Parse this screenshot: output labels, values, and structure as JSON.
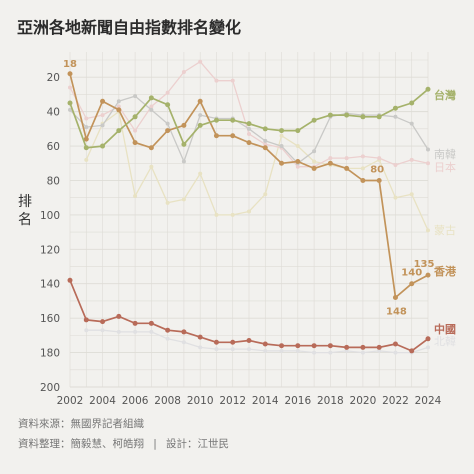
{
  "title": "亞洲各地新聞自由指數排名變化",
  "colors": {
    "background": "#f2f1ee",
    "taiwan": "#a5b26b",
    "hongkong": "#c2935a",
    "china": "#b86b59",
    "korea": "#c9c9c7",
    "japan": "#ecd0cf",
    "mongolia": "#e8e2c3",
    "northkorea": "#e0e0e2",
    "grid": "#dedcd6",
    "axis_text": "#555555"
  },
  "footer": {
    "source": "資料來源：無國界記者組織",
    "credits": "資料整理：簡毅慧、柯皓翔",
    "separator": "|",
    "design": "設計：江世民"
  },
  "chart_data": {
    "type": "line",
    "title": "亞洲各地新聞自由指數排名變化",
    "xlabel": "",
    "ylabel": "排名",
    "x": [
      2002,
      2003,
      2004,
      2005,
      2006,
      2007,
      2008,
      2009,
      2010,
      2011,
      2012,
      2013,
      2014,
      2015,
      2016,
      2017,
      2018,
      2019,
      2020,
      2021,
      2022,
      2023,
      2024
    ],
    "xlim": [
      2002,
      2024
    ],
    "ylim": [
      200,
      10
    ],
    "y_inverted": true,
    "xticks": [
      2002,
      2004,
      2006,
      2008,
      2010,
      2012,
      2014,
      2016,
      2018,
      2020,
      2022,
      2024
    ],
    "yticks": [
      20,
      40,
      60,
      80,
      100,
      120,
      140,
      160,
      180,
      200
    ],
    "grid": true,
    "legend": "end-of-line labels",
    "series": [
      {
        "name": "蒙古",
        "key": "mongolia",
        "values": [
          null,
          68,
          47,
          40,
          89,
          72,
          93,
          91,
          76,
          100,
          100,
          98,
          88,
          54,
          60,
          69,
          71,
          73,
          73,
          68,
          90,
          88,
          109
        ]
      },
      {
        "name": "北韓",
        "key": "northkorea",
        "values": [
          null,
          167,
          167,
          168,
          168,
          168,
          172,
          174,
          177,
          178,
          178,
          178,
          179,
          179,
          179,
          180,
          180,
          179,
          180,
          179,
          180,
          180,
          177
        ]
      },
      {
        "name": "日本",
        "key": "japan",
        "values": [
          26,
          44,
          42,
          37,
          51,
          37,
          29,
          17,
          11,
          22,
          22,
          53,
          59,
          61,
          72,
          72,
          67,
          67,
          66,
          67,
          71,
          68,
          70
        ]
      },
      {
        "name": "南韓",
        "key": "korea",
        "values": [
          39,
          49,
          48,
          34,
          31,
          39,
          47,
          69,
          42,
          44,
          44,
          50,
          57,
          60,
          70,
          63,
          43,
          41,
          42,
          42,
          43,
          47,
          62
        ]
      },
      {
        "name": "中國",
        "key": "china",
        "values": [
          138,
          161,
          162,
          159,
          163,
          163,
          167,
          168,
          171,
          174,
          174,
          173,
          175,
          176,
          176,
          176,
          176,
          177,
          177,
          177,
          175,
          179,
          172
        ]
      },
      {
        "name": "香港",
        "key": "hongkong",
        "values": [
          18,
          56,
          34,
          39,
          58,
          61,
          51,
          48,
          34,
          54,
          54,
          58,
          61,
          70,
          69,
          73,
          70,
          73,
          80,
          80,
          148,
          140,
          135
        ]
      },
      {
        "name": "台灣",
        "key": "taiwan",
        "values": [
          35,
          61,
          60,
          51,
          43,
          32,
          36,
          59,
          48,
          45,
          45,
          47,
          50,
          51,
          51,
          45,
          42,
          42,
          43,
          43,
          38,
          35,
          27
        ]
      }
    ],
    "annotations": [
      {
        "series": "香港",
        "x": 2002,
        "y": 18,
        "label": "18"
      },
      {
        "series": "香港",
        "x": 2021,
        "y": 80,
        "label": "80"
      },
      {
        "series": "香港",
        "x": 2022,
        "y": 148,
        "label": "148"
      },
      {
        "series": "香港",
        "x": 2023,
        "y": 140,
        "label": "140"
      },
      {
        "series": "香港",
        "x": 2024,
        "y": 135,
        "label": "135"
      }
    ]
  }
}
